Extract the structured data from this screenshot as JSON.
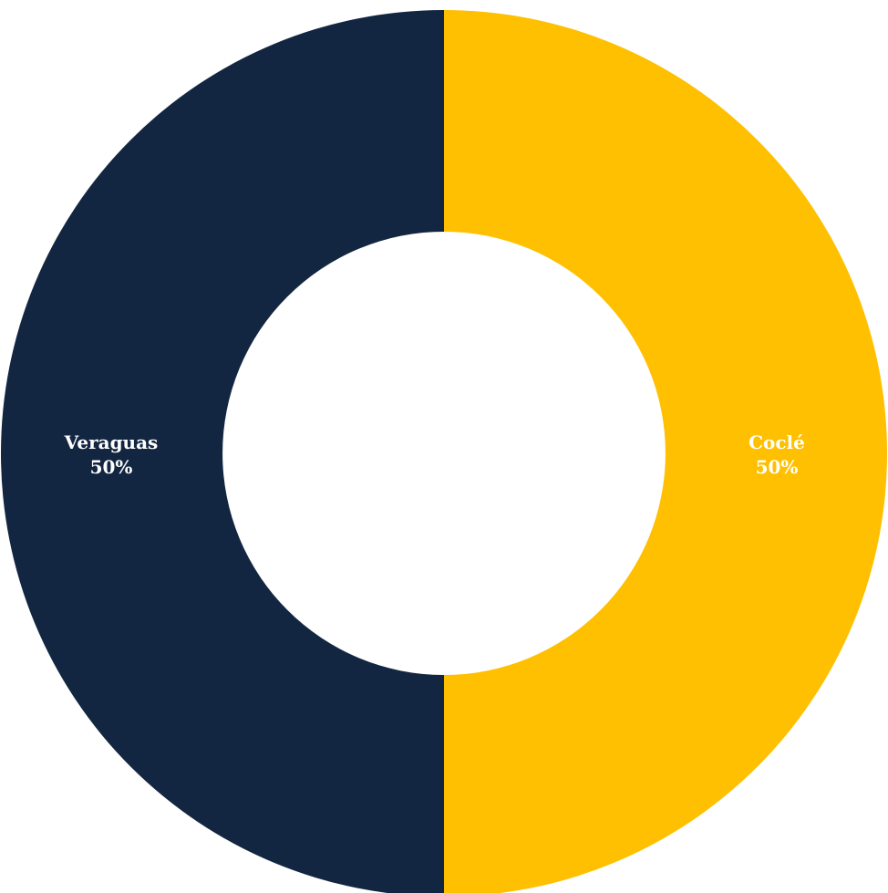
{
  "chart_data": {
    "type": "pie",
    "variant": "donut",
    "title": "",
    "legend": "none",
    "slices": [
      {
        "label": "Coclé",
        "value": 50,
        "percent_label": "50%",
        "color": "#fec000",
        "label_color": "#ffffff"
      },
      {
        "label": "Veraguas",
        "value": 50,
        "percent_label": "50%",
        "color": "#132641",
        "label_color": "#ffffff"
      }
    ]
  }
}
